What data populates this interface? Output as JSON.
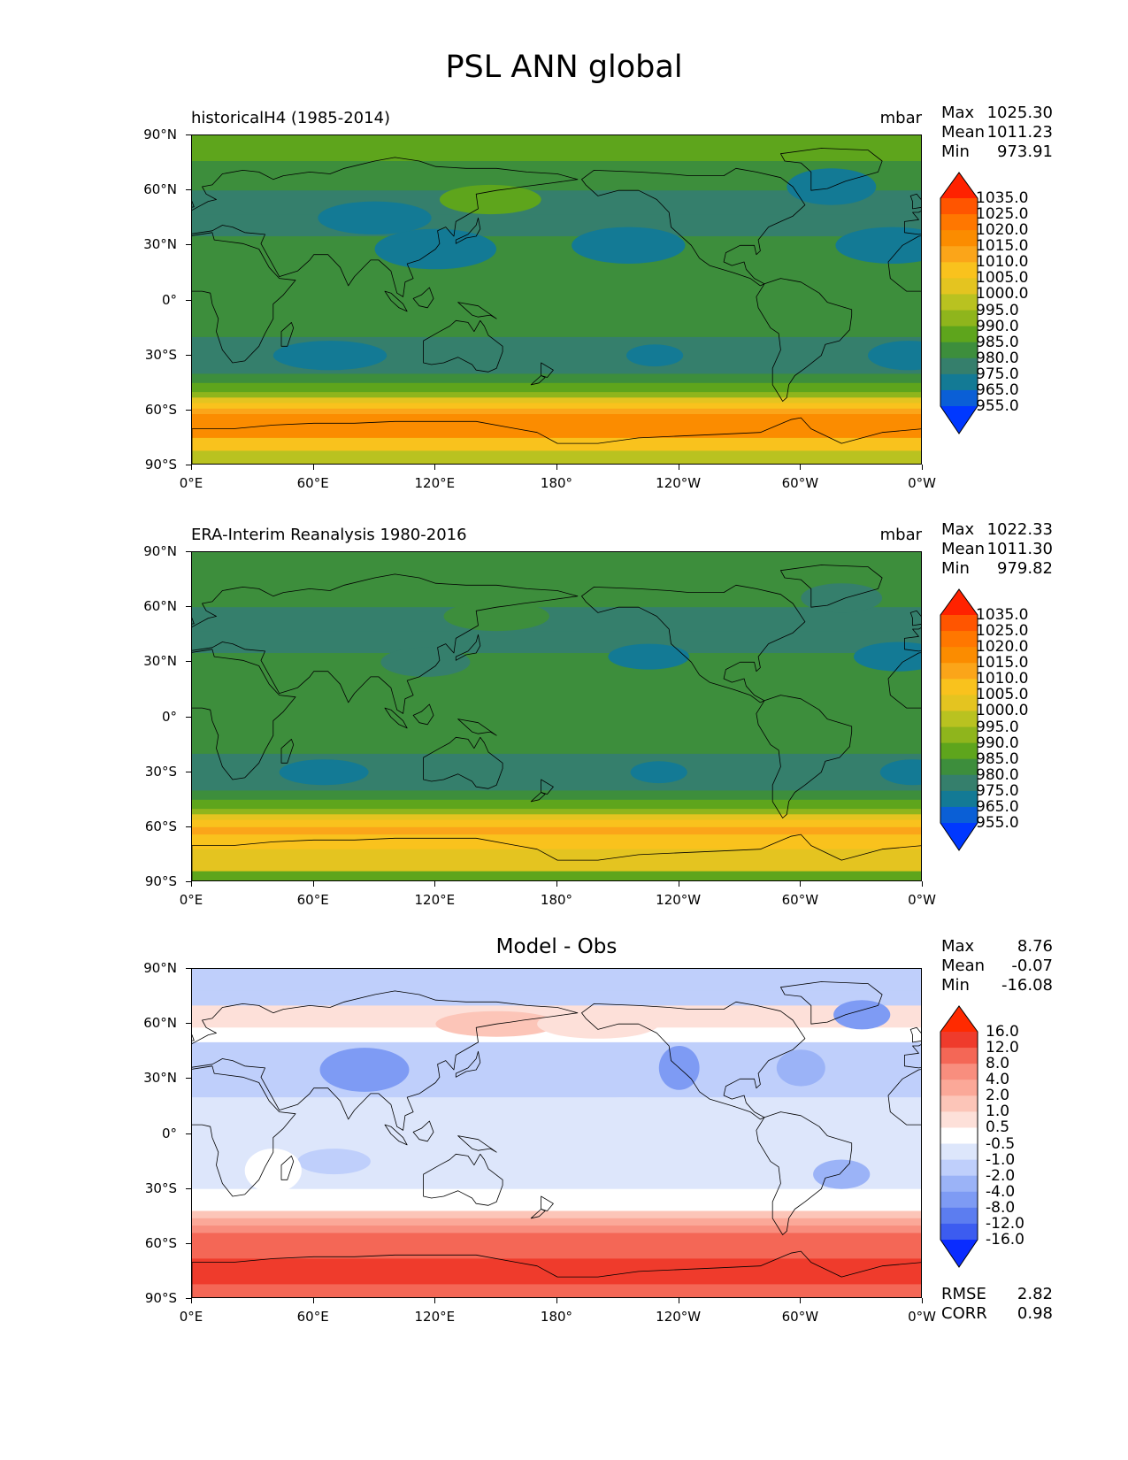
{
  "figure": {
    "title": "PSL ANN global",
    "panels": [
      {
        "id": "test",
        "title_left": "historicalH4 (1985-2014)",
        "title_right": "mbar",
        "title_center": "",
        "stats": [
          {
            "label": "Max",
            "value": "1025.30"
          },
          {
            "label": "Mean",
            "value": "1011.23"
          },
          {
            "label": "Min",
            "value": "973.91"
          }
        ],
        "colorbar": {
          "labels": [
            "1035.0",
            "1025.0",
            "1020.0",
            "1015.0",
            "1010.0",
            "1005.0",
            "1000.0",
            "995.0",
            "990.0",
            "985.0",
            "980.0",
            "975.0",
            "965.0",
            "955.0"
          ],
          "colors": [
            "#ff2200",
            "#ff5500",
            "#ff7700",
            "#fb8c00",
            "#fba519",
            "#f9c21d",
            "#e4c420",
            "#b9c220",
            "#8fb51c",
            "#5ea51c",
            "#3d8e3c",
            "#357f6c",
            "#137a95",
            "#0a5fd6",
            "#0038ff"
          ]
        }
      },
      {
        "id": "ref",
        "title_left": "ERA-Interim Reanalysis 1980-2016",
        "title_right": "mbar",
        "title_center": "",
        "stats": [
          {
            "label": "Max",
            "value": "1022.33"
          },
          {
            "label": "Mean",
            "value": "1011.30"
          },
          {
            "label": "Min",
            "value": "979.82"
          }
        ],
        "colorbar": {
          "labels": [
            "1035.0",
            "1025.0",
            "1020.0",
            "1015.0",
            "1010.0",
            "1005.0",
            "1000.0",
            "995.0",
            "990.0",
            "985.0",
            "980.0",
            "975.0",
            "965.0",
            "955.0"
          ],
          "colors": [
            "#ff2200",
            "#ff5500",
            "#ff7700",
            "#fb8c00",
            "#fba519",
            "#f9c21d",
            "#e4c420",
            "#b9c220",
            "#8fb51c",
            "#5ea51c",
            "#3d8e3c",
            "#357f6c",
            "#137a95",
            "#0a5fd6",
            "#0038ff"
          ]
        }
      },
      {
        "id": "diff",
        "title_left": "",
        "title_right": "",
        "title_center": "Model - Obs",
        "stats": [
          {
            "label": "Max",
            "value": "8.76"
          },
          {
            "label": "Mean",
            "value": "-0.07"
          },
          {
            "label": "Min",
            "value": "-16.08"
          }
        ],
        "bottom_stats": [
          {
            "label": "RMSE",
            "value": "2.82"
          },
          {
            "label": "CORR",
            "value": "0.98"
          }
        ],
        "colorbar": {
          "labels": [
            "16.0",
            "12.0",
            "8.0",
            "4.0",
            "2.0",
            "1.0",
            "0.5",
            "-0.5",
            "-1.0",
            "-2.0",
            "-4.0",
            "-8.0",
            "-12.0",
            "-16.0"
          ],
          "colors": [
            "#ff2a00",
            "#ef3b2c",
            "#f46756",
            "#f88e7e",
            "#fba898",
            "#fcc5b8",
            "#fde0d9",
            "#ffffff",
            "#dde6fb",
            "#bfcffb",
            "#9bb3f7",
            "#7e9bf4",
            "#5c7df0",
            "#3c5cf0",
            "#0a2cff"
          ]
        }
      }
    ],
    "x_ticks": [
      "0°E",
      "60°E",
      "120°E",
      "180°",
      "120°W",
      "60°W",
      "0°W"
    ],
    "y_ticks": [
      "90°N",
      "60°N",
      "30°N",
      "0°",
      "30°S",
      "60°S",
      "90°S"
    ]
  }
}
